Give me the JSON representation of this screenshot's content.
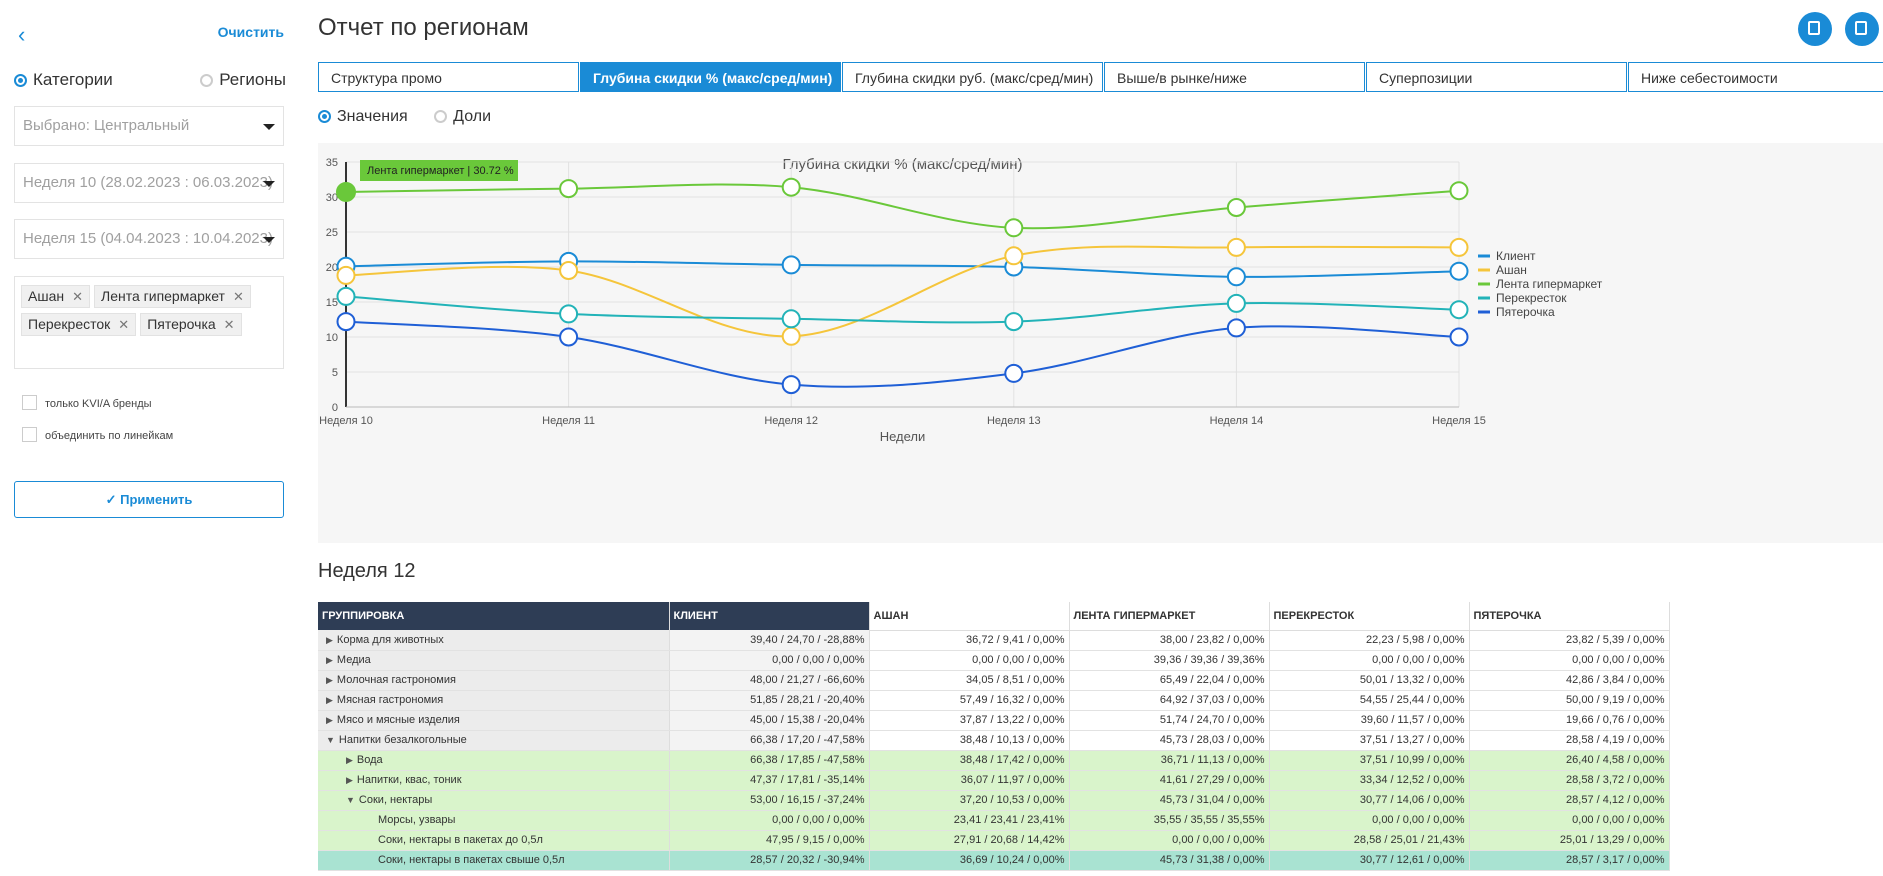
{
  "sidebar": {
    "back_icon": "chevron-left-icon",
    "clear_label": "Очистить",
    "radio_categories": "Категории",
    "radio_regions": "Регионы",
    "selected_region": "Выбрано: Центральный",
    "week_from": "Неделя 10 (28.02.2023 : 06.03.2023)",
    "week_to": "Неделя 15 (04.04.2023 : 10.04.2023)",
    "tags": [
      "Ашан",
      "Лента гипермаркет",
      "Перекресток",
      "Пятерочка"
    ],
    "check_kvi": "только KVI/A бренды",
    "check_lines": "объединить по линейкам",
    "apply_label": "Применить"
  },
  "main": {
    "title": "Отчет по регионам",
    "tabs": [
      "Структура промо",
      "Глубина скидки % (макс/сред/мин)",
      "Глубина скидки руб. (макс/сред/мин)",
      "Выше/в рынке/ниже",
      "Суперпозиции",
      "Ниже себестоимости"
    ],
    "mode_values": "Значения",
    "mode_shares": "Доли",
    "week_title": "Неделя 12"
  },
  "colors": {
    "accent": "#1a8bd6",
    "header_dark": "#2e3d55"
  },
  "chart_data": {
    "type": "line",
    "title": "Глубина скидки % (макс/сред/мин)",
    "xlabel": "Недели",
    "ylabel": "",
    "categories": [
      "Неделя 10",
      "Неделя 11",
      "Неделя 12",
      "Неделя 13",
      "Неделя 14",
      "Неделя 15"
    ],
    "ylim": [
      0,
      35
    ],
    "yticks": [
      0,
      5,
      10,
      15,
      20,
      25,
      30,
      35
    ],
    "grid": true,
    "legend": "right",
    "tooltip": "Лента гипермаркет | 30.72 %",
    "series": [
      {
        "name": "Клиент",
        "color": "#1a8bd6",
        "values": [
          20.1,
          20.8,
          20.3,
          20.0,
          18.6,
          19.4
        ]
      },
      {
        "name": "Ашан",
        "color": "#f5c53b",
        "values": [
          18.8,
          19.5,
          10.1,
          21.6,
          22.8,
          22.8
        ]
      },
      {
        "name": "Лента гипермаркет",
        "color": "#6ac83a",
        "values": [
          30.72,
          31.2,
          31.4,
          25.6,
          28.5,
          30.9
        ]
      },
      {
        "name": "Перекресток",
        "color": "#22b3b8",
        "values": [
          15.8,
          13.3,
          12.6,
          12.2,
          14.8,
          13.9
        ]
      },
      {
        "name": "Пятерочка",
        "color": "#1f5fd6",
        "values": [
          12.2,
          10.0,
          3.2,
          4.8,
          11.3,
          10.0
        ]
      }
    ]
  },
  "table": {
    "headers": [
      "ГРУППИРОВКА",
      "КЛИЕНТ",
      "АШАН",
      "ЛЕНТА ГИПЕРМАРКЕТ",
      "ПЕРЕКРЕСТОК",
      "ПЯТЕРОЧКА"
    ],
    "rows": [
      {
        "style": "grey",
        "level": 0,
        "arrow": "▶",
        "cells": [
          "Корма для животных",
          "39,40 / 24,70 / -28,88%",
          "36,72 / 9,41 / 0,00%",
          "38,00 / 23,82 / 0,00%",
          "22,23 / 5,98 / 0,00%",
          "23,82 / 5,39 / 0,00%"
        ]
      },
      {
        "style": "grey",
        "level": 0,
        "arrow": "▶",
        "cells": [
          "Медиа",
          "0,00 / 0,00 / 0,00%",
          "0,00 / 0,00 / 0,00%",
          "39,36 / 39,36 / 39,36%",
          "0,00 / 0,00 / 0,00%",
          "0,00 / 0,00 / 0,00%"
        ]
      },
      {
        "style": "grey",
        "level": 0,
        "arrow": "▶",
        "cells": [
          "Молочная гастрономия",
          "48,00 / 21,27 / -66,60%",
          "34,05 / 8,51 / 0,00%",
          "65,49 / 22,04 / 0,00%",
          "50,01 / 13,32 / 0,00%",
          "42,86 / 3,84 / 0,00%"
        ]
      },
      {
        "style": "grey",
        "level": 0,
        "arrow": "▶",
        "cells": [
          "Мясная гастрономия",
          "51,85 / 28,21 / -20,40%",
          "57,49 / 16,32 / 0,00%",
          "64,92 / 37,03 / 0,00%",
          "54,55 / 25,44 / 0,00%",
          "50,00 / 9,19 / 0,00%"
        ]
      },
      {
        "style": "grey",
        "level": 0,
        "arrow": "▶",
        "cells": [
          "Мясо и мясные изделия",
          "45,00 / 15,38 / -20,04%",
          "37,87 / 13,22 / 0,00%",
          "51,74 / 24,70 / 0,00%",
          "39,60 / 11,57 / 0,00%",
          "19,66 / 0,76 / 0,00%"
        ]
      },
      {
        "style": "grey",
        "level": 0,
        "arrow": "▼",
        "cells": [
          "Напитки безалкогольные",
          "66,38 / 17,20 / -47,58%",
          "38,48 / 10,13 / 0,00%",
          "45,73 / 28,03 / 0,00%",
          "37,51 / 13,27 / 0,00%",
          "28,58 / 4,19 / 0,00%"
        ]
      },
      {
        "style": "green",
        "level": 1,
        "arrow": "▶",
        "cells": [
          "Вода",
          "66,38 / 17,85 / -47,58%",
          "38,48 / 17,42 / 0,00%",
          "36,71 / 11,13 / 0,00%",
          "37,51 / 10,99 / 0,00%",
          "26,40 / 4,58 / 0,00%"
        ]
      },
      {
        "style": "green",
        "level": 1,
        "arrow": "▶",
        "cells": [
          "Напитки, квас, тоник",
          "47,37 / 17,81 / -35,14%",
          "36,07 / 11,97 / 0,00%",
          "41,61 / 27,29 / 0,00%",
          "33,34 / 12,52 / 0,00%",
          "28,58 / 3,72 / 0,00%"
        ]
      },
      {
        "style": "green",
        "level": 1,
        "arrow": "▼",
        "cells": [
          "Соки, нектары",
          "53,00 / 16,15 / -37,24%",
          "37,20 / 10,53 / 0,00%",
          "45,73 / 31,04 / 0,00%",
          "30,77 / 14,06 / 0,00%",
          "28,57 / 4,12 / 0,00%"
        ]
      },
      {
        "style": "green",
        "level": 2,
        "arrow": "",
        "cells": [
          "Морсы, узвары",
          "0,00 / 0,00 / 0,00%",
          "23,41 / 23,41 / 23,41%",
          "35,55 / 35,55 / 35,55%",
          "0,00 / 0,00 / 0,00%",
          "0,00 / 0,00 / 0,00%"
        ]
      },
      {
        "style": "green",
        "level": 2,
        "arrow": "",
        "cells": [
          "Соки, нектары в пакетах до 0,5л",
          "47,95 / 9,15 / 0,00%",
          "27,91 / 20,68 / 14,42%",
          "0,00 / 0,00 / 0,00%",
          "28,58 / 25,01 / 21,43%",
          "25,01 / 13,29 / 0,00%"
        ]
      },
      {
        "style": "teal",
        "level": 2,
        "arrow": "",
        "cells": [
          "Соки, нектары в пакетах свыше 0,5л",
          "28,57 / 20,32 / -30,94%",
          "36,69 / 10,24 / 0,00%",
          "45,73 / 31,38 / 0,00%",
          "30,77 / 12,61 / 0,00%",
          "28,57 / 3,17 / 0,00%"
        ]
      }
    ]
  }
}
